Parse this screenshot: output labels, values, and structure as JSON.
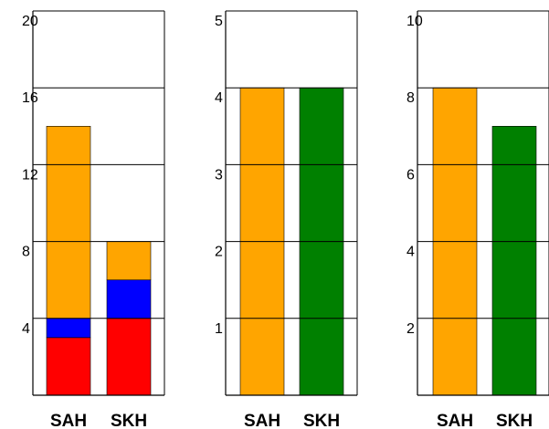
{
  "chart_data": [
    {
      "type": "bar",
      "stacked": true,
      "categories": [
        "SAH",
        "SKH"
      ],
      "ylim": [
        0,
        20
      ],
      "yticks": [
        "4",
        "8",
        "12",
        "16",
        "20"
      ],
      "series": [
        {
          "color": "#ff0000",
          "values": [
            3,
            4
          ]
        },
        {
          "color": "#0000ff",
          "values": [
            1,
            2
          ]
        },
        {
          "color": "#ffa500",
          "values": [
            10,
            2
          ]
        }
      ]
    },
    {
      "type": "bar",
      "categories": [
        "SAH",
        "SKH"
      ],
      "ylim": [
        0,
        5
      ],
      "yticks": [
        "1",
        "2",
        "3",
        "4",
        "5"
      ],
      "values": [
        4,
        4
      ],
      "colors": [
        "#ffa500",
        "#008000"
      ]
    },
    {
      "type": "bar",
      "categories": [
        "SAH",
        "SKH"
      ],
      "ylim": [
        0,
        10
      ],
      "yticks": [
        "2",
        "4",
        "6",
        "8",
        "10"
      ],
      "values": [
        8,
        7
      ],
      "colors": [
        "#ffa500",
        "#008000"
      ]
    }
  ]
}
